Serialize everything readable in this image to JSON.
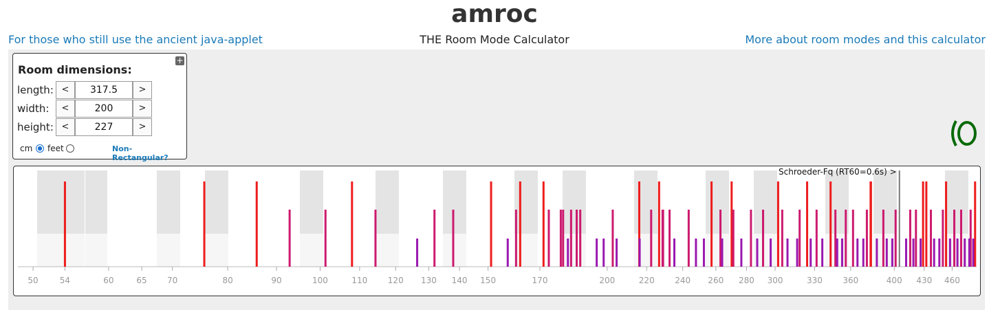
{
  "header": {
    "title": "amroc",
    "subtitle": "THE Room Mode Calculator",
    "left_link": "For those who still use the ancient java-applet",
    "right_link": "More about room modes and this calculator"
  },
  "room": {
    "title": "Room dimensions:",
    "buttons": [
      "<",
      ">"
    ],
    "fields": [
      {
        "label": "length:",
        "value": "317.5"
      },
      {
        "label": "width:",
        "value": "200"
      },
      {
        "label": "height:",
        "value": "227"
      }
    ],
    "units": [
      "cm",
      "feet"
    ],
    "link": "Non-Rectangular?"
  },
  "chart_data": {
    "type": "modes",
    "log": true,
    "xlim": [
      48.2,
      488
    ],
    "xticks": [
      50,
      54,
      60,
      65,
      70,
      80,
      90,
      100,
      110,
      120,
      130,
      140,
      150,
      170,
      200,
      220,
      240,
      260,
      280,
      300,
      330,
      360,
      400,
      430,
      460
    ],
    "annotation": {
      "text": "Schroeder-Fq (RT60=0.6s) >",
      "x": 405
    },
    "series": [
      {
        "color": "#ee1c1c",
        "x": [
          54.0,
          75.6,
          85.8,
          108.0,
          151.1,
          162.1,
          171.5,
          216.1,
          226.7,
          257.3,
          270.1,
          302.2,
          324.1,
          343.0,
          378.1,
          377.8,
          428.8,
          432.2,
          453.3,
          486.2
        ]
      },
      {
        "color": "#cc1a6e",
        "x": [
          92.9,
          101.3,
          114.3,
          131.8,
          137.9,
          160.5,
          173.7,
          178.8,
          179.8,
          183.3,
          185.8,
          187.4,
          202.7,
          222.4,
          228.6,
          228.9,
          232.5,
          243.5,
          262.9,
          271.2,
          283.0,
          291.4,
          305.2,
          318.3,
          331.6,
          347.0,
          355.8,
          362.1,
          374.4,
          389.6,
          401.3,
          415.7,
          421.5,
          437.0,
          449.8,
          462.4,
          470.1,
          481.0
        ]
      },
      {
        "color": "#9a18b0",
        "x": [
          126.4,
          157.3,
          181.9,
          195.0,
          198.3,
          204.6,
          216.3,
          235.2,
          247.8,
          252.6,
          264.0,
          276.5,
          287.3,
          296.8,
          309.1,
          316.4,
          326.9,
          336.2,
          348.5,
          352.7,
          366.0,
          371.2,
          383.5,
          392.8,
          398.1,
          411.6,
          418.9,
          426.3,
          440.4,
          446.0,
          457.7,
          465.9,
          474.2,
          479.5,
          484.0
        ]
      }
    ]
  }
}
